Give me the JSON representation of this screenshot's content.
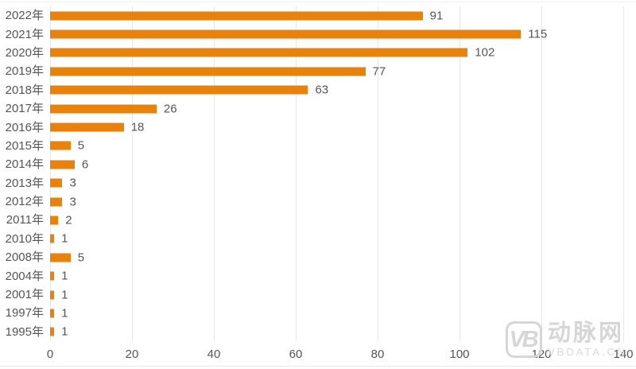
{
  "chart_data": {
    "type": "bar",
    "orientation": "horizontal",
    "title": "",
    "xlabel": "",
    "ylabel": "",
    "categories": [
      "2022年",
      "2021年",
      "2020年",
      "2019年",
      "2018年",
      "2017年",
      "2016年",
      "2015年",
      "2014年",
      "2013年",
      "2012年",
      "2011年",
      "2010年",
      "2008年",
      "2004年",
      "2001年",
      "1997年",
      "1995年"
    ],
    "values": [
      91,
      115,
      102,
      77,
      63,
      26,
      18,
      5,
      6,
      3,
      3,
      2,
      1,
      5,
      1,
      1,
      1,
      1
    ],
    "xlim": [
      0,
      140
    ],
    "x_ticks": [
      0,
      20,
      40,
      60,
      80,
      100,
      120,
      140
    ],
    "grid": true,
    "legend": "none",
    "data_labels": true,
    "colors": {
      "bar": "#e8820c",
      "text": "#555555",
      "gridline": "#e7e7e7"
    }
  },
  "watermark": {
    "logo_text": "VB",
    "brand_name": "动脉网",
    "site": "VBDATA.CN"
  }
}
